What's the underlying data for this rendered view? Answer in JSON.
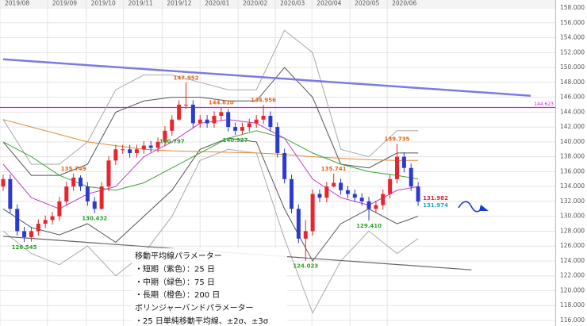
{
  "chart_data": {
    "type": "candlestick",
    "up_color": "#e8242c",
    "down_color": "#2b3bd0",
    "grid": true,
    "xlim": [
      -0.45,
      78.5
    ],
    "ylim": [
      115.254,
      159.07
    ],
    "xticks": [
      {
        "value": -0.45,
        "label": "2019/08"
      },
      {
        "value": 6.3,
        "label": "2019/09"
      },
      {
        "value": 11.8,
        "label": "2019/10"
      },
      {
        "value": 17.1,
        "label": "2019/11"
      },
      {
        "value": 22.6,
        "label": "2019/12"
      },
      {
        "value": 28,
        "label": "2020/01"
      },
      {
        "value": 33.4,
        "label": "2020/02"
      },
      {
        "value": 38.7,
        "label": "2020/03"
      },
      {
        "value": 43.9,
        "label": "2020/04"
      },
      {
        "value": 49.3,
        "label": "2020/05"
      },
      {
        "value": 54.6,
        "label": "2020/06"
      }
    ],
    "yticks": [
      {
        "value": 158,
        "label": "158.000"
      },
      {
        "value": 156,
        "label": "156.000"
      },
      {
        "value": 154,
        "label": "154.000"
      },
      {
        "value": 152,
        "label": "152.000"
      },
      {
        "value": 150,
        "label": "150.000"
      },
      {
        "value": 148,
        "label": "148.000"
      },
      {
        "value": 146,
        "label": "146.000"
      },
      {
        "value": 144,
        "label": "144.000"
      },
      {
        "value": 142,
        "label": "142.000"
      },
      {
        "value": 140,
        "label": "140.000"
      },
      {
        "value": 138,
        "label": "138.000"
      },
      {
        "value": 136,
        "label": "136.000"
      },
      {
        "value": 134,
        "label": "134.000"
      },
      {
        "value": 132,
        "label": "132.000"
      },
      {
        "value": 130,
        "label": "130.000"
      },
      {
        "value": 128,
        "label": "128.000"
      },
      {
        "value": 126,
        "label": "126.000"
      },
      {
        "value": 124,
        "label": "124.000"
      },
      {
        "value": 122,
        "label": "122.000"
      },
      {
        "value": 120,
        "label": "120.000"
      },
      {
        "value": 118,
        "label": "118.000"
      },
      {
        "value": 116,
        "label": "116.000"
      }
    ],
    "open": [
      134,
      135,
      131,
      128,
      127.2,
      128,
      129,
      129.5,
      130,
      132,
      134,
      135.2,
      134,
      132,
      131,
      134,
      137.5,
      139,
      139,
      138.5,
      139,
      139.5,
      139.2,
      140,
      141.5,
      143,
      145,
      145,
      142.5,
      143,
      142.5,
      143.5,
      144,
      142,
      141.5,
      142,
      142.5,
      143,
      143.5,
      142,
      138.5,
      135,
      131,
      127,
      128,
      133,
      132.5,
      134,
      134.5,
      133.5,
      133,
      132.5,
      132,
      131,
      131.5,
      133,
      135,
      138,
      136.5,
      134
    ],
    "close": [
      135,
      131,
      128,
      127.2,
      128,
      129,
      129.5,
      130,
      132,
      134,
      135.2,
      134,
      132,
      131,
      134,
      137.5,
      139,
      139,
      138.5,
      139,
      139.5,
      139.2,
      140,
      141.5,
      143,
      145,
      145,
      142.5,
      143,
      142.5,
      143.5,
      144,
      142,
      141.5,
      142,
      142.5,
      143,
      143.5,
      142,
      138.5,
      135,
      131,
      127,
      128,
      133,
      132.5,
      134,
      134.5,
      133.5,
      133,
      132.5,
      132,
      131,
      131.5,
      133,
      135,
      138,
      136.5,
      134,
      131.974
    ],
    "high": [
      135.6,
      135.6,
      131.6,
      128.6,
      128.6,
      129.6,
      130.1,
      130.6,
      132.6,
      134.6,
      135.749,
      135.5,
      134.6,
      132.6,
      134.6,
      138.1,
      139.6,
      139.6,
      139.6,
      139.6,
      140.1,
      140.1,
      140.6,
      142.1,
      143.6,
      145.6,
      147.952,
      145.6,
      143.6,
      143.6,
      144.1,
      144.61,
      144.4,
      142.6,
      142.6,
      143.1,
      143.6,
      144.956,
      144.1,
      142.6,
      139.1,
      135.6,
      131.6,
      129.5,
      133.6,
      133.6,
      134.6,
      135.741,
      135.1,
      134.1,
      133.6,
      133.1,
      132.6,
      132.1,
      133.6,
      135.6,
      139.735,
      138.6,
      137.1,
      134.6
    ],
    "low": [
      133.4,
      130.4,
      127.4,
      126.545,
      126.6,
      127.4,
      128.4,
      128.9,
      129.4,
      131.4,
      133.4,
      133.4,
      131.4,
      130.432,
      130.9,
      133.4,
      136.9,
      138.4,
      137.9,
      137.9,
      138.4,
      138.6,
      138.6,
      139.4,
      140.797,
      142.9,
      144.4,
      141.9,
      141.9,
      141.9,
      141.9,
      142.9,
      141.4,
      140.927,
      141.0,
      141.4,
      141.9,
      142.4,
      141.4,
      137.9,
      134.4,
      130.4,
      126.4,
      124.023,
      127.4,
      131.9,
      131.9,
      133.9,
      132.9,
      132.4,
      131.9,
      131.4,
      129.41,
      130.4,
      130.9,
      132.4,
      134.4,
      135.9,
      133.4,
      131.4
    ],
    "overlays": [
      {
        "color": "#aaaaaa",
        "x": [
          0,
          4,
          8,
          12,
          16,
          20,
          24,
          28,
          32,
          36,
          40,
          44,
          48,
          52,
          56,
          59
        ],
        "values": [
          143,
          137,
          137,
          140,
          147,
          149,
          149,
          148,
          147,
          147,
          155,
          152,
          139,
          138,
          141.5,
          141.5
        ]
      },
      {
        "color": "#555555",
        "x": [
          0,
          4,
          8,
          12,
          16,
          20,
          24,
          28,
          32,
          36,
          40,
          44,
          48,
          52,
          56,
          59
        ],
        "values": [
          140,
          135.5,
          135.5,
          137,
          144,
          145.5,
          146,
          146,
          145.5,
          145.5,
          150,
          146,
          137,
          136.5,
          138.5,
          138.5
        ]
      },
      {
        "color": "#555555",
        "x": [
          0,
          4,
          8,
          12,
          16,
          20,
          24,
          28,
          32,
          36,
          40,
          44,
          48,
          52,
          56,
          59
        ],
        "values": [
          131,
          128.5,
          127.5,
          129,
          126.5,
          130,
          133.5,
          139,
          140.5,
          140,
          131,
          124,
          129,
          131,
          129,
          130
        ]
      },
      {
        "color": "#aaaaaa",
        "x": [
          0,
          4,
          8,
          12,
          16,
          20,
          24,
          28,
          32,
          36,
          40,
          44,
          48,
          52,
          56,
          59
        ],
        "values": [
          128,
          125,
          123.5,
          126,
          122,
          125,
          130,
          137.5,
          139,
          138.5,
          127,
          117,
          124,
          128,
          125,
          127
        ]
      },
      {
        "color": "#e08a3c",
        "x": [
          0,
          4,
          8,
          12,
          16,
          20,
          24,
          28,
          32,
          36,
          40,
          44,
          48,
          52,
          56,
          59
        ],
        "values": [
          143,
          142,
          141,
          140,
          139.5,
          139,
          138.8,
          138.7,
          138.6,
          138.5,
          138.3,
          138,
          137.8,
          137.6,
          137.5,
          137.5
        ]
      },
      {
        "color": "#3aa83a",
        "x": [
          0,
          4,
          8,
          12,
          16,
          20,
          24,
          28,
          32,
          36,
          40,
          44,
          48,
          52,
          56,
          59
        ],
        "values": [
          140,
          138,
          135.5,
          134,
          133.5,
          134.5,
          136.5,
          138.5,
          140.5,
          141.5,
          140.5,
          138.5,
          137,
          136,
          135.5,
          135
        ]
      },
      {
        "color": "#c03cc8",
        "x": [
          0,
          4,
          8,
          12,
          16,
          20,
          24,
          28,
          32,
          36,
          40,
          44,
          48,
          52,
          56,
          59
        ],
        "values": [
          137,
          132.5,
          131,
          133,
          134,
          138,
          140,
          142.5,
          143,
          142.5,
          140.5,
          135,
          132.5,
          131.5,
          133.5,
          134
        ]
      }
    ],
    "trendlines": [
      {
        "color": "#7b7be6",
        "x": [
          0,
          75
        ],
        "values": [
          151.1,
          146.2
        ]
      },
      {
        "color": "#666666",
        "x": [
          0,
          66.6
        ],
        "values": [
          127.3,
          122.8
        ]
      }
    ],
    "hline": {
      "value": 144.623,
      "color": "#d020d0"
    },
    "annotations": [
      {
        "index": 26,
        "value": 147.952,
        "label": "147.952",
        "color": "#e0641a",
        "position": "above"
      },
      {
        "index": 31,
        "value": 144.61,
        "label": "144.610",
        "color": "#e0641a",
        "position": "above"
      },
      {
        "index": 37,
        "value": 144.956,
        "label": "144.956",
        "color": "#e0641a",
        "position": "above"
      },
      {
        "index": 24,
        "value": 140.797,
        "label": "140.797",
        "color": "#2aa02a",
        "position": "below"
      },
      {
        "index": 33,
        "value": 140.927,
        "label": "140.927",
        "color": "#2aa02a",
        "position": "below"
      },
      {
        "index": 10,
        "value": 135.749,
        "label": "135.749",
        "color": "#e0641a",
        "position": "above"
      },
      {
        "index": 13,
        "value": 130.432,
        "label": "130.432",
        "color": "#2aa02a",
        "position": "below"
      },
      {
        "index": 3,
        "value": 126.545,
        "label": "126.545",
        "color": "#2aa02a",
        "position": "below"
      },
      {
        "index": 43,
        "value": 124.023,
        "label": "124.023",
        "color": "#2aa02a",
        "position": "below"
      },
      {
        "index": 47,
        "value": 135.741,
        "label": "135.741",
        "color": "#e0641a",
        "position": "above"
      },
      {
        "index": 56,
        "value": 139.735,
        "label": "139.735",
        "color": "#e0641a",
        "position": "above"
      },
      {
        "index": 52,
        "value": 129.41,
        "label": "129.410",
        "color": "#2aa02a",
        "position": "below"
      },
      {
        "index": 59,
        "value": 131.982,
        "label": "131.982",
        "color": "#e8242c",
        "position": "right-above"
      },
      {
        "index": 59,
        "value": 131.974,
        "label": "131.974",
        "color": "#1aa8c8",
        "position": "right-below"
      }
    ],
    "note": [
      "移動平均線パラメーター",
      "・短期（紫色）：25 日",
      "・中期（緑色）：75 日",
      "・長期（橙色）：200 日",
      "ボリンジャーバンドパラメーター",
      "・25 日単純移動平均線、±2σ、±3σ"
    ]
  }
}
